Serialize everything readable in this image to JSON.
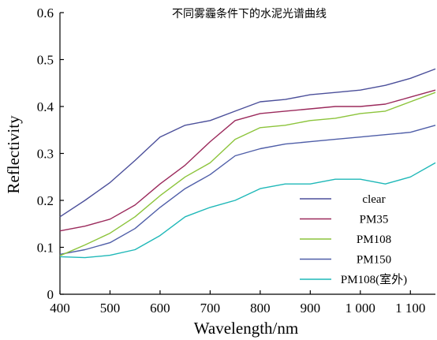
{
  "chart_data": {
    "type": "line",
    "title": "不同雾霾条件下的水泥光谱曲线",
    "xlabel": "Wavelength/nm",
    "ylabel": "Reflectivity",
    "xlim": [
      400,
      1150
    ],
    "ylim": [
      0,
      0.6
    ],
    "xticks": [
      400,
      500,
      600,
      700,
      800,
      900,
      1000,
      1100
    ],
    "xtick_labels": [
      "400",
      "500",
      "600",
      "700",
      "800",
      "900",
      "1 000",
      "1 100"
    ],
    "yticks": [
      0,
      0.1,
      0.2,
      0.3,
      0.4,
      0.5,
      0.6
    ],
    "ytick_labels": [
      "0",
      "0.1",
      "0.2",
      "0.3",
      "0.4",
      "0.5",
      "0.6"
    ],
    "grid": false,
    "legend_position": "bottom-right",
    "x": [
      400,
      450,
      500,
      550,
      600,
      650,
      700,
      750,
      800,
      850,
      900,
      950,
      1000,
      1050,
      1100,
      1150
    ],
    "series": [
      {
        "name": "clear",
        "color": "#4b4f9a",
        "values": [
          0.165,
          0.2,
          0.238,
          0.285,
          0.335,
          0.36,
          0.37,
          0.39,
          0.41,
          0.415,
          0.425,
          0.43,
          0.435,
          0.445,
          0.46,
          0.48
        ]
      },
      {
        "name": "PM35",
        "color": "#9b2a5c",
        "values": [
          0.135,
          0.145,
          0.16,
          0.19,
          0.235,
          0.275,
          0.325,
          0.37,
          0.385,
          0.39,
          0.395,
          0.4,
          0.4,
          0.405,
          0.42,
          0.435
        ]
      },
      {
        "name": "PM108",
        "color": "#8cc43b",
        "values": [
          0.082,
          0.105,
          0.13,
          0.165,
          0.21,
          0.25,
          0.28,
          0.33,
          0.355,
          0.36,
          0.37,
          0.375,
          0.385,
          0.39,
          0.41,
          0.43
        ]
      },
      {
        "name": "PM150",
        "color": "#4f5ea8",
        "values": [
          0.085,
          0.095,
          0.11,
          0.14,
          0.185,
          0.225,
          0.255,
          0.295,
          0.31,
          0.32,
          0.325,
          0.33,
          0.335,
          0.34,
          0.345,
          0.36
        ]
      },
      {
        "name": "PM108(室外)",
        "color": "#1fb8b8",
        "values": [
          0.08,
          0.078,
          0.083,
          0.095,
          0.125,
          0.165,
          0.185,
          0.2,
          0.225,
          0.235,
          0.235,
          0.245,
          0.245,
          0.235,
          0.25,
          0.28
        ]
      }
    ]
  }
}
